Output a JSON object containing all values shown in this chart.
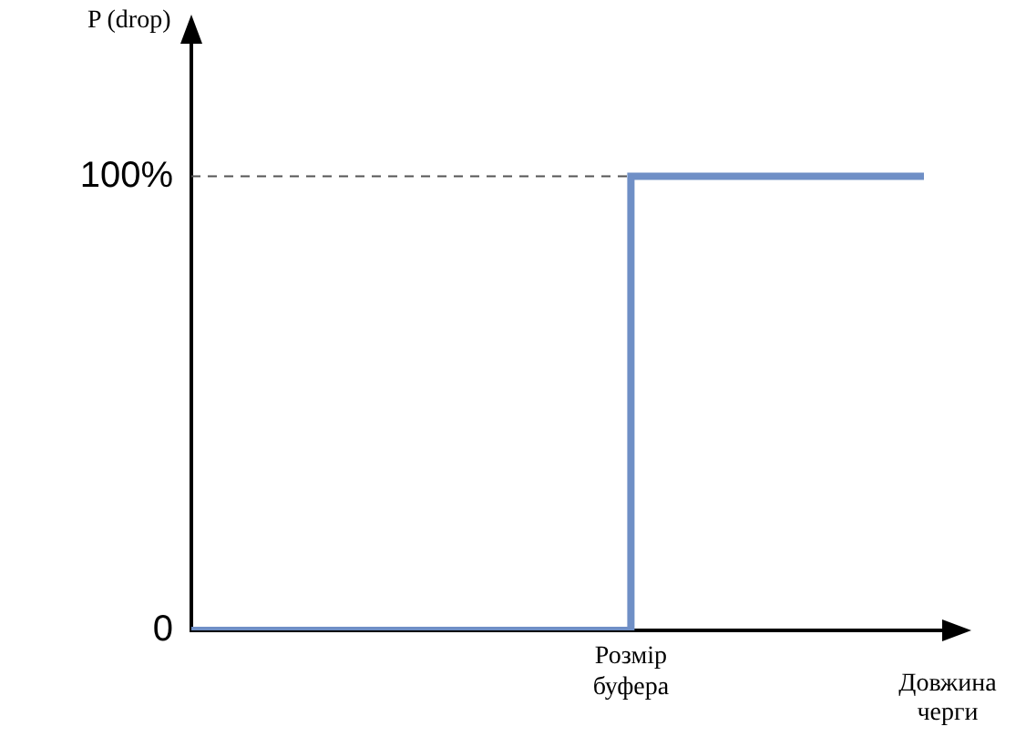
{
  "chart_data": {
    "type": "step",
    "ylabel": "P (drop)",
    "xlabel": "Довжина черги",
    "categories": [
      null,
      null,
      null,
      "Розмір буфера",
      null,
      null
    ],
    "series": [
      {
        "color": "#6f8fc6",
        "values": [
          0,
          0,
          0,
          100,
          100,
          100
        ]
      }
    ],
    "ylim": [
      0,
      130
    ],
    "yticks": [
      {
        "value": 0,
        "label": "0"
      },
      {
        "value": 100,
        "label": "100%"
      }
    ],
    "ref_lines": [
      {
        "axis": "y",
        "value": 100,
        "color": "#555555",
        "line_style": "dashed"
      }
    ],
    "grid": false,
    "legend": false
  }
}
